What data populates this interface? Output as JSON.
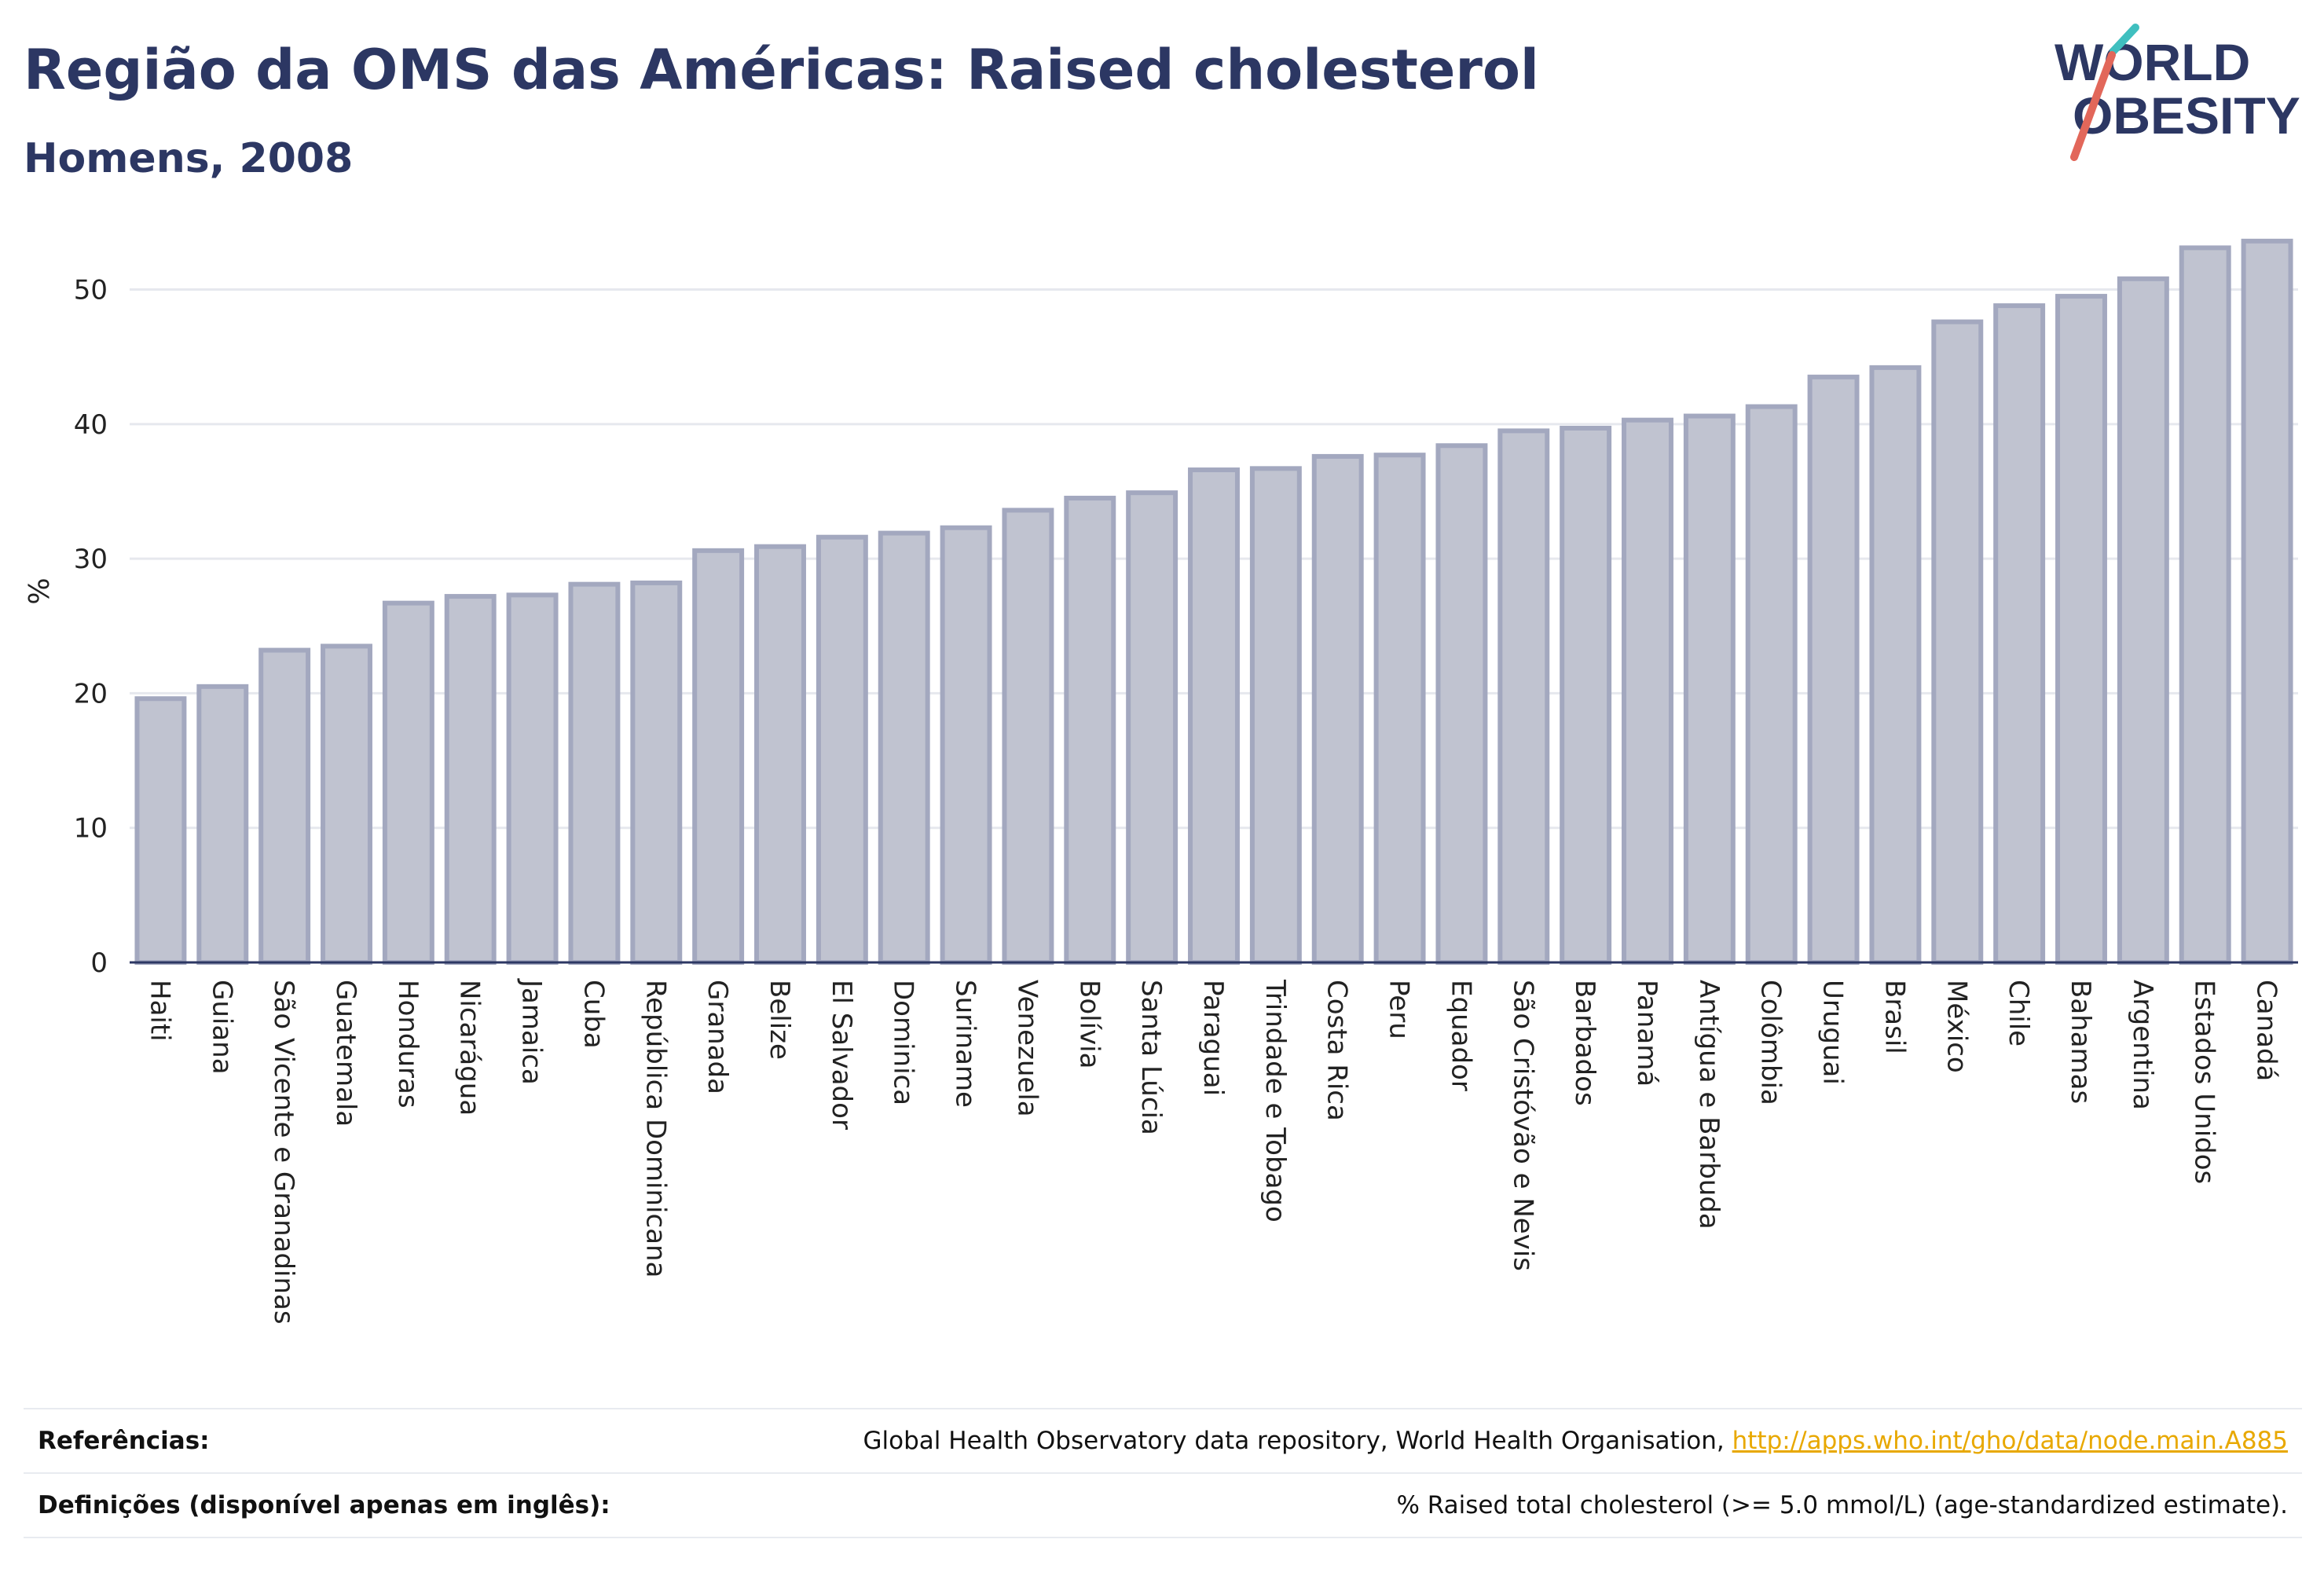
{
  "header": {
    "title": "Região da OMS das Américas: Raised cholesterol",
    "subtitle": "Homens, 2008"
  },
  "logo": {
    "line1": "WORLD",
    "line2": "OBESITY"
  },
  "chart_data": {
    "type": "bar",
    "ylabel": "%",
    "xlabel": "",
    "ylim": [
      0,
      54
    ],
    "yticks": [
      0,
      10,
      20,
      30,
      40,
      50
    ],
    "grid": true,
    "bar_color": "#c0c3d0",
    "bar_edge_color": "#a3a8bf",
    "categories": [
      "Haiti",
      "Guiana",
      "São Vicente e Granadinas",
      "Guatemala",
      "Honduras",
      "Nicarágua",
      "Jamaica",
      "Cuba",
      "República Dominicana",
      "Granada",
      "Belize",
      "El Salvador",
      "Dominica",
      "Suriname",
      "Venezuela",
      "Bolívia",
      "Santa Lúcia",
      "Paraguai",
      "Trindade e Tobago",
      "Costa Rica",
      "Peru",
      "Equador",
      "São Cristóvão e Nevis",
      "Barbados",
      "Panamá",
      "Antígua e Barbuda",
      "Colômbia",
      "Uruguai",
      "Brasil",
      "México",
      "Chile",
      "Bahamas",
      "Argentina",
      "Estados Unidos",
      "Canadá"
    ],
    "values": [
      19.6,
      20.5,
      23.2,
      23.5,
      26.7,
      27.2,
      27.3,
      28.1,
      28.2,
      30.6,
      30.9,
      31.6,
      31.9,
      32.3,
      33.6,
      34.5,
      34.9,
      36.6,
      36.7,
      37.6,
      37.7,
      38.4,
      39.5,
      39.7,
      40.3,
      40.6,
      41.3,
      43.5,
      44.2,
      47.6,
      48.8,
      49.5,
      50.8,
      53.1,
      53.6
    ]
  },
  "footer": {
    "references_label": "Referências:",
    "references_text": "Global Health Observatory data repository, World Health Organisation,",
    "references_link": "http://apps.who.int/gho/data/node.main.A885",
    "definitions_label": "Definições (disponível apenas em inglês):",
    "definitions_text": "% Raised total cholesterol (>= 5.0 mmol/L) (age-standardized estimate)."
  }
}
